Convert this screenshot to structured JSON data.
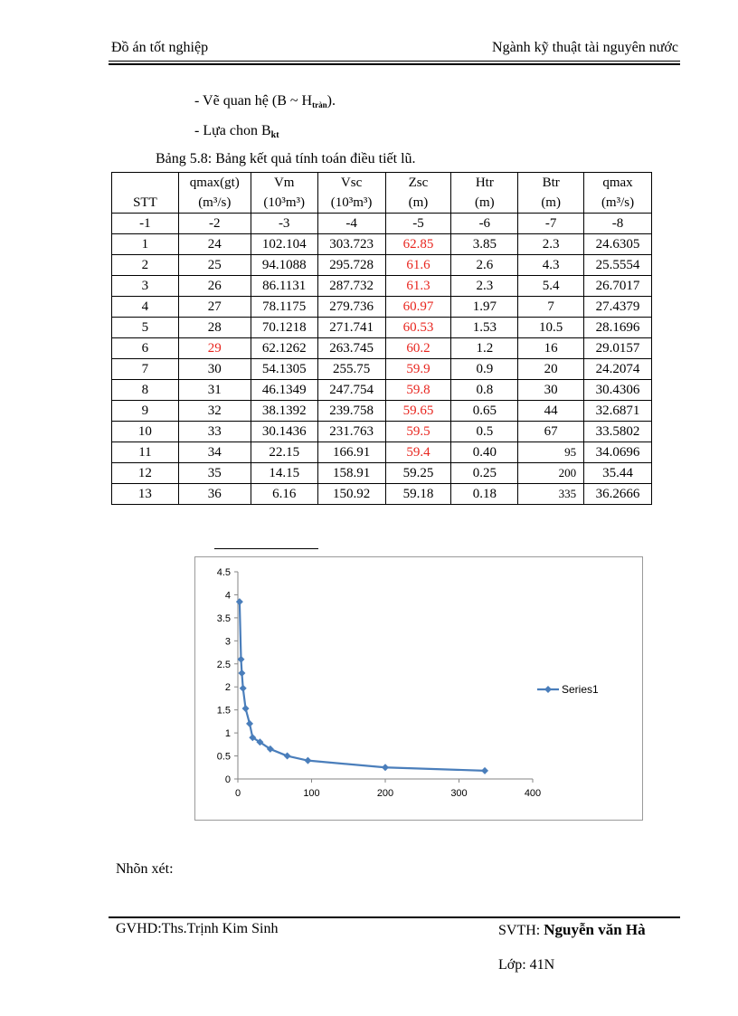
{
  "header": {
    "left": "Đồ án tốt nghiệp",
    "right": "Ngành kỹ thuật tài nguyên nước"
  },
  "body_lines": {
    "line1_prefix": "- Vẽ quan hệ (B ~ H",
    "line1_sub": "tràn",
    "line1_suffix": ").",
    "line2_prefix": "- Lựa chon B",
    "line2_sub": "kt"
  },
  "table_caption": "Bảng 5.8: Bảng kết quả tính toán điều tiết lũ.",
  "table": {
    "header_row1": [
      "",
      "qmax(gt)",
      "Vm",
      "Vsc",
      "Zsc",
      "Htr",
      "Btr",
      "qmax"
    ],
    "header_row2": [
      "STT",
      "(m³/s)",
      "(10³m³)",
      "(10³m³)",
      "(m)",
      "(m)",
      "(m)",
      "(m³/s)"
    ],
    "index_row": [
      "-1",
      "-2",
      "-3",
      "-4",
      "-5",
      "-6",
      "-7",
      "-8"
    ],
    "rows": [
      [
        "1",
        "24",
        "102.104",
        "303.723",
        "62.85",
        "3.85",
        "2.3",
        "24.6305"
      ],
      [
        "2",
        "25",
        "94.1088",
        "295.728",
        "61.6",
        "2.6",
        "4.3",
        "25.5554"
      ],
      [
        "3",
        "26",
        "86.1131",
        "287.732",
        "61.3",
        "2.3",
        "5.4",
        "26.7017"
      ],
      [
        "4",
        "27",
        "78.1175",
        "279.736",
        "60.97",
        "1.97",
        "7",
        "27.4379"
      ],
      [
        "5",
        "28",
        "70.1218",
        "271.741",
        "60.53",
        "1.53",
        "10.5",
        "28.1696"
      ],
      [
        "6",
        "29",
        "62.1262",
        "263.745",
        "60.2",
        "1.2",
        "16",
        "29.0157"
      ],
      [
        "7",
        "30",
        "54.1305",
        "255.75",
        "59.9",
        "0.9",
        "20",
        "24.2074"
      ],
      [
        "8",
        "31",
        "46.1349",
        "247.754",
        "59.8",
        "0.8",
        "30",
        "30.4306"
      ],
      [
        "9",
        "32",
        "38.1392",
        "239.758",
        "59.65",
        "0.65",
        "44",
        "32.6871"
      ],
      [
        "10",
        "33",
        "30.1436",
        "231.763",
        "59.5",
        "0.5",
        "67",
        "33.5802"
      ],
      [
        "11",
        "34",
        "22.15",
        "166.91",
        "59.4",
        "0.40",
        "95",
        "34.0696"
      ],
      [
        "12",
        "35",
        "14.15",
        "158.91",
        "59.25",
        "0.25",
        "200",
        "35.44"
      ],
      [
        "13",
        "36",
        "6.16",
        "150.92",
        "59.18",
        "0.18",
        "335",
        "36.2666"
      ]
    ]
  },
  "colors": {
    "highlight": "#e8251e",
    "series": "#4a7ebb"
  },
  "chart_data": {
    "type": "scatter",
    "title": "",
    "xlabel": "",
    "ylabel": "",
    "x": [
      2.3,
      4.3,
      5.4,
      7,
      10.5,
      16,
      20,
      30,
      44,
      67,
      95,
      200,
      335
    ],
    "series": [
      {
        "name": "Series1",
        "values": [
          3.85,
          2.6,
          2.3,
          1.97,
          1.53,
          1.2,
          0.9,
          0.8,
          0.65,
          0.5,
          0.4,
          0.25,
          0.18
        ]
      }
    ],
    "xlim": [
      0,
      400
    ],
    "ylim": [
      0,
      4.5
    ],
    "x_ticks": [
      "0",
      "100",
      "200",
      "300",
      "400"
    ],
    "y_ticks": [
      "0",
      "0.5",
      "1",
      "1.5",
      "2",
      "2.5",
      "3",
      "3.5",
      "4",
      "4.5"
    ],
    "legend": "right"
  },
  "comment_label": "Nhõn xét:",
  "footer": {
    "left": "GVHD:Ths.Trịnh   Kim Sinh",
    "svth_label": "SVTH: ",
    "svth_name": "Nguyễn văn Hà",
    "class_line": "Lớp: 41N"
  }
}
